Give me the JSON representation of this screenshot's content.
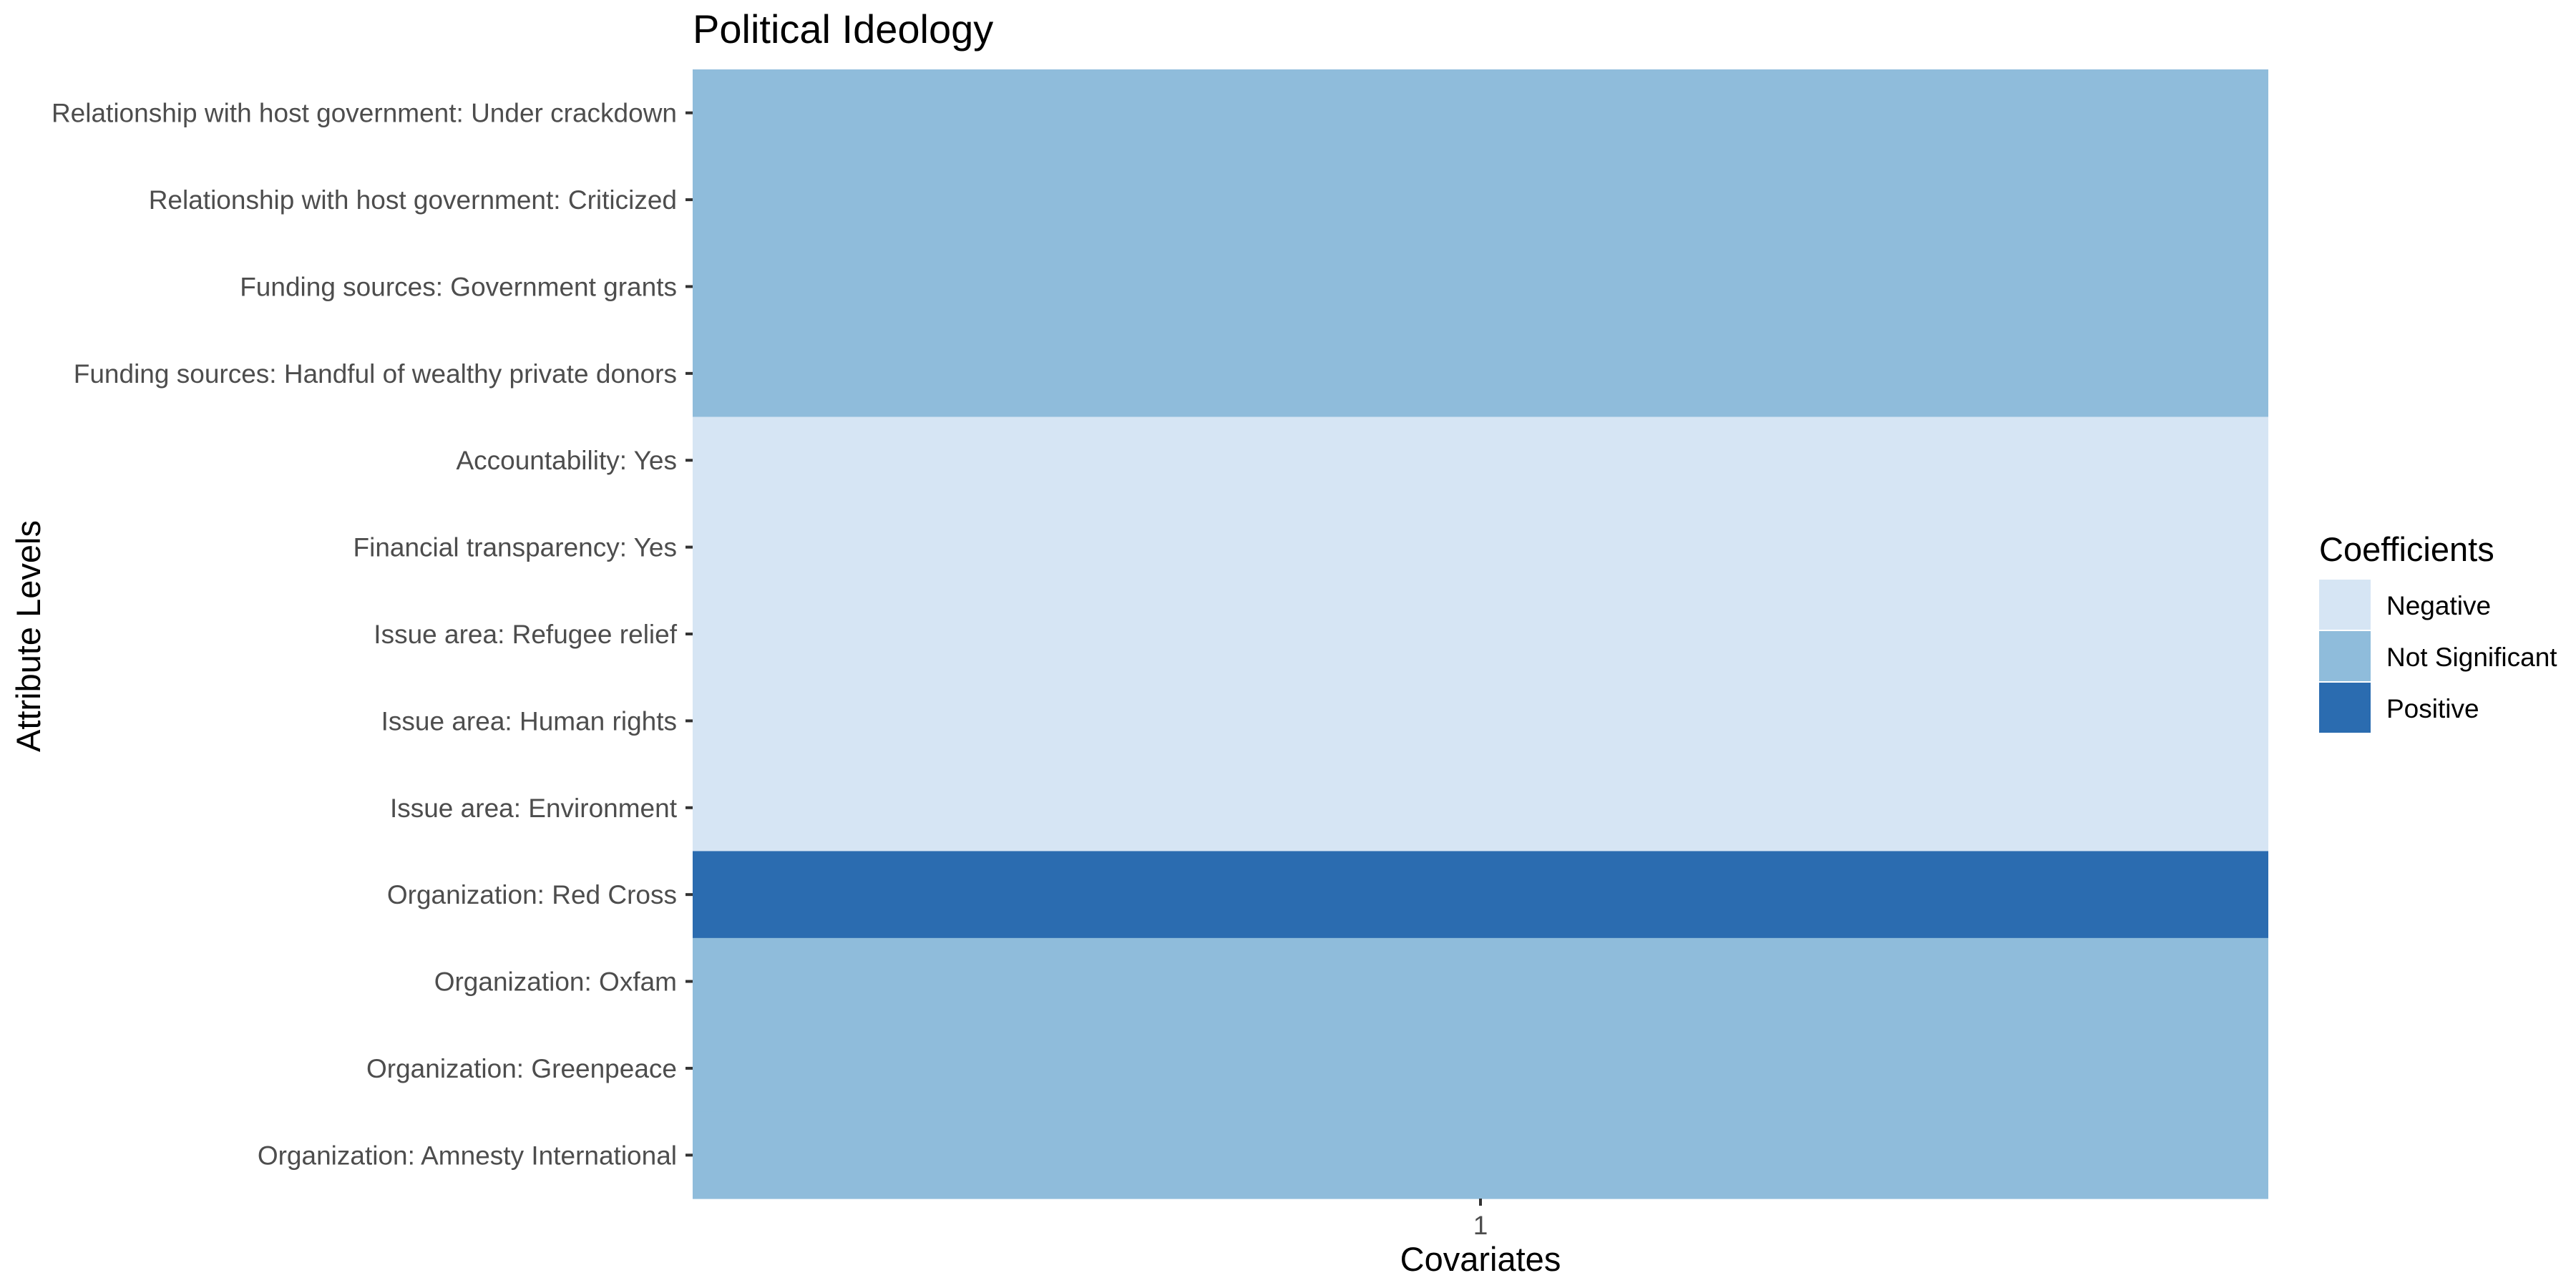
{
  "chart_data": {
    "type": "heatmap",
    "title": "Political Ideology",
    "xlabel": "Covariates",
    "ylabel": "Attribute Levels",
    "x_categories": [
      "1"
    ],
    "y_categories": [
      "Relationship with host government: Under crackdown",
      "Relationship with host government: Criticized",
      "Funding sources: Government grants",
      "Funding sources: Handful of wealthy private donors",
      "Accountability: Yes",
      "Financial transparency: Yes",
      "Issue area: Refugee relief",
      "Issue area: Human rights",
      "Issue area: Environment",
      "Organization: Red Cross",
      "Organization: Oxfam",
      "Organization: Greenpeace",
      "Organization: Amnesty International"
    ],
    "cells": [
      {
        "x": "1",
        "y": "Relationship with host government: Under crackdown",
        "value": "Not Significant"
      },
      {
        "x": "1",
        "y": "Relationship with host government: Criticized",
        "value": "Not Significant"
      },
      {
        "x": "1",
        "y": "Funding sources: Government grants",
        "value": "Not Significant"
      },
      {
        "x": "1",
        "y": "Funding sources: Handful of wealthy private donors",
        "value": "Not Significant"
      },
      {
        "x": "1",
        "y": "Accountability: Yes",
        "value": "Negative"
      },
      {
        "x": "1",
        "y": "Financial transparency: Yes",
        "value": "Negative"
      },
      {
        "x": "1",
        "y": "Issue area: Refugee relief",
        "value": "Negative"
      },
      {
        "x": "1",
        "y": "Issue area: Human rights",
        "value": "Negative"
      },
      {
        "x": "1",
        "y": "Issue area: Environment",
        "value": "Negative"
      },
      {
        "x": "1",
        "y": "Organization: Red Cross",
        "value": "Positive"
      },
      {
        "x": "1",
        "y": "Organization: Oxfam",
        "value": "Not Significant"
      },
      {
        "x": "1",
        "y": "Organization: Greenpeace",
        "value": "Not Significant"
      },
      {
        "x": "1",
        "y": "Organization: Amnesty International",
        "value": "Not Significant"
      }
    ],
    "legend": {
      "title": "Coefficients",
      "placement": "right",
      "entries": [
        {
          "label": "Negative",
          "color": "#d6e5f4"
        },
        {
          "label": "Not Significant",
          "color": "#8fbcdb"
        },
        {
          "label": "Positive",
          "color": "#2b6cb0"
        }
      ]
    },
    "grid": false
  }
}
